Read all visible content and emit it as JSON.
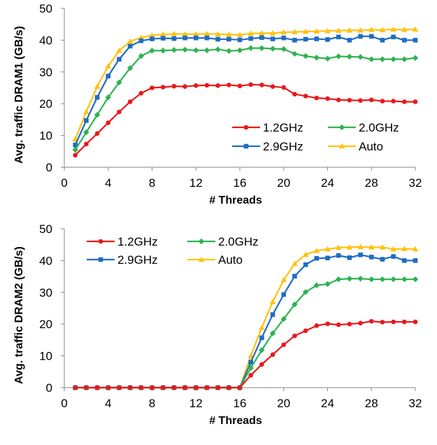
{
  "colors": {
    "1.2GHz": "#e8191b",
    "2.0GHz": "#2eb350",
    "2.9GHz": "#1f6cc2",
    "Auto": "#ffc20e"
  },
  "chart_data": [
    {
      "type": "line",
      "xlabel": "# Threads",
      "ylabel": "Avg. traffic DRAM1 (GB/s)",
      "xlim": [
        0,
        32
      ],
      "ylim": [
        0,
        50
      ],
      "xticks": [
        0,
        4,
        8,
        12,
        16,
        20,
        24,
        28,
        32
      ],
      "yticks": [
        0,
        10,
        20,
        30,
        40,
        50
      ],
      "legend": "bottom-right",
      "grid": false,
      "x": [
        1,
        2,
        3,
        4,
        5,
        6,
        7,
        8,
        9,
        10,
        11,
        12,
        13,
        14,
        15,
        16,
        17,
        18,
        19,
        20,
        21,
        22,
        23,
        24,
        25,
        26,
        27,
        28,
        29,
        30,
        31,
        32
      ],
      "series": [
        {
          "name": "1.2GHz",
          "marker": "circle",
          "values": [
            3.8,
            7.3,
            10.6,
            14.0,
            17.4,
            20.6,
            23.3,
            25.0,
            25.2,
            25.5,
            25.4,
            25.7,
            25.8,
            25.7,
            25.9,
            25.6,
            26.0,
            25.9,
            25.4,
            25.1,
            23.0,
            22.4,
            21.8,
            21.6,
            21.2,
            21.1,
            21.0,
            21.2,
            20.8,
            20.8,
            20.6,
            20.6
          ]
        },
        {
          "name": "2.0GHz",
          "marker": "diamond",
          "values": [
            5.5,
            11.0,
            16.5,
            22.0,
            26.7,
            31.2,
            35.0,
            36.7,
            36.7,
            36.9,
            37.0,
            36.8,
            36.8,
            37.1,
            36.6,
            36.8,
            37.5,
            37.5,
            37.3,
            37.2,
            35.7,
            35.0,
            34.5,
            34.2,
            34.9,
            34.8,
            34.7,
            34.0,
            34.0,
            34.0,
            34.0,
            34.4
          ]
        },
        {
          "name": "2.9GHz",
          "marker": "square",
          "values": [
            7.0,
            14.7,
            22.0,
            28.7,
            34.0,
            38.1,
            39.8,
            40.4,
            40.6,
            40.5,
            40.7,
            40.7,
            40.7,
            40.3,
            40.3,
            40.1,
            40.5,
            40.8,
            40.4,
            40.7,
            40.0,
            40.3,
            40.4,
            40.2,
            41.0,
            40.0,
            41.2,
            41.2,
            40.0,
            41.0,
            40.0,
            40.0
          ]
        },
        {
          "name": "Auto",
          "marker": "triangle",
          "values": [
            8.8,
            17.5,
            25.4,
            31.8,
            36.7,
            39.6,
            40.8,
            41.5,
            41.8,
            42.0,
            41.9,
            41.9,
            42.0,
            41.9,
            41.8,
            41.7,
            42.1,
            42.2,
            42.2,
            42.5,
            42.6,
            42.7,
            42.8,
            42.9,
            43.0,
            43.1,
            43.1,
            43.3,
            43.2,
            43.4,
            43.3,
            43.4
          ]
        }
      ]
    },
    {
      "type": "line",
      "xlabel": "# Threads",
      "ylabel": "Avg. traffic DRAM2 (GB/s)",
      "xlim": [
        0,
        32
      ],
      "ylim": [
        0,
        50
      ],
      "xticks": [
        0,
        4,
        8,
        12,
        16,
        20,
        24,
        28,
        32
      ],
      "yticks": [
        0,
        10,
        20,
        30,
        40,
        50
      ],
      "legend": "top-left",
      "grid": false,
      "x": [
        1,
        2,
        3,
        4,
        5,
        6,
        7,
        8,
        9,
        10,
        11,
        12,
        13,
        14,
        15,
        16,
        17,
        18,
        19,
        20,
        21,
        22,
        23,
        24,
        25,
        26,
        27,
        28,
        29,
        30,
        31,
        32
      ],
      "series": [
        {
          "name": "1.2GHz",
          "marker": "circle",
          "values": [
            0,
            0,
            0,
            0,
            0,
            0,
            0,
            0,
            0,
            0,
            0,
            0,
            0,
            0,
            0,
            0,
            3.9,
            7.3,
            10.4,
            13.5,
            16.3,
            17.9,
            19.5,
            20.1,
            19.8,
            20.0,
            20.3,
            20.9,
            20.6,
            20.7,
            20.7,
            20.7
          ]
        },
        {
          "name": "2.0GHz",
          "marker": "diamond",
          "values": [
            0,
            0,
            0,
            0,
            0,
            0,
            0,
            0,
            0,
            0,
            0,
            0,
            0,
            0,
            0,
            0,
            6.2,
            11.8,
            17.1,
            21.6,
            26.2,
            30.1,
            32.2,
            32.6,
            34.1,
            34.3,
            34.3,
            34.1,
            34.1,
            34.1,
            34.1,
            34.1
          ]
        },
        {
          "name": "2.9GHz",
          "marker": "square",
          "values": [
            0,
            0,
            0,
            0,
            0,
            0,
            0,
            0,
            0,
            0,
            0,
            0,
            0,
            0,
            0,
            0,
            8.0,
            15.7,
            23.0,
            29.3,
            35.1,
            38.7,
            40.7,
            40.8,
            41.6,
            40.9,
            41.8,
            41.1,
            40.4,
            41.3,
            40.0,
            40.0
          ]
        },
        {
          "name": "Auto",
          "marker": "triangle",
          "values": [
            0,
            0,
            0,
            0,
            0,
            0,
            0,
            0,
            0,
            0,
            0,
            0,
            0,
            0,
            0,
            0,
            10.0,
            18.9,
            27.0,
            33.9,
            39.0,
            41.9,
            43.1,
            43.6,
            44.1,
            44.2,
            44.3,
            44.2,
            44.2,
            43.6,
            43.7,
            43.6
          ]
        }
      ]
    }
  ]
}
